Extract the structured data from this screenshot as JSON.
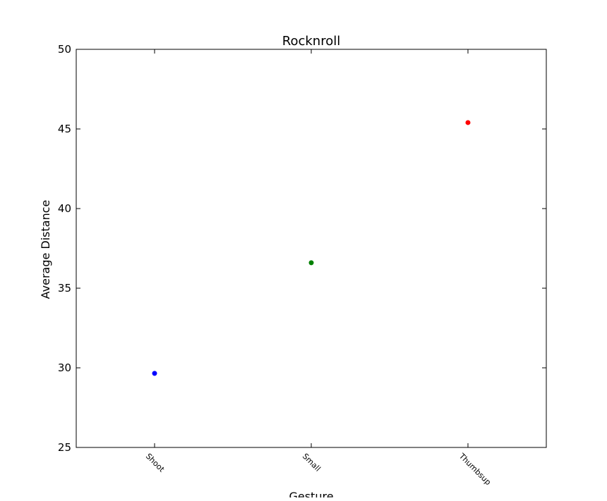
{
  "chart_data": {
    "type": "scatter",
    "title": "Rocknroll",
    "xlabel": "Gesture",
    "ylabel": "Average Distance",
    "categories": [
      "Shoot",
      "Small",
      "Thumbsup"
    ],
    "values": [
      29.65,
      36.6,
      45.4
    ],
    "point_colors": [
      "#0000ff",
      "#008000",
      "#ff0000"
    ],
    "ylim": [
      25,
      50
    ],
    "yticks": [
      25,
      30,
      35,
      40,
      45,
      50
    ],
    "xlim": [
      -0.5,
      2.5
    ],
    "grid": false,
    "legend": "none"
  }
}
